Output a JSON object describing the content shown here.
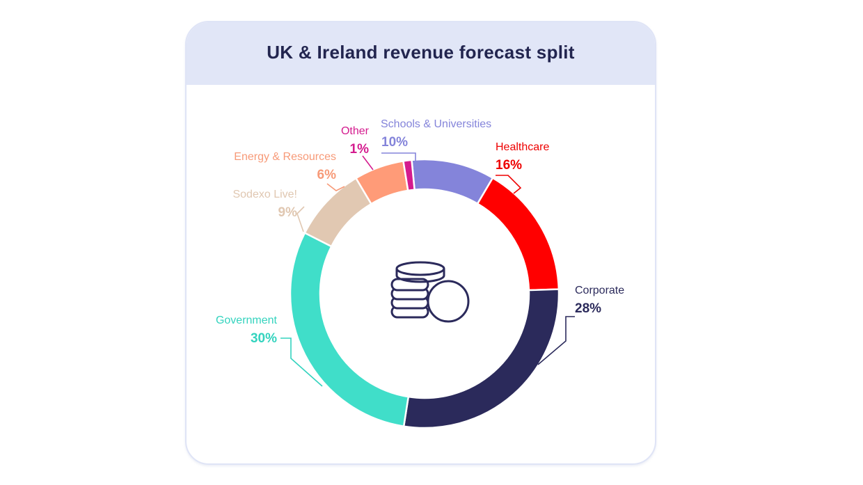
{
  "header": {
    "title": "UK & Ireland revenue forecast split"
  },
  "center_icon": "coins-stack-icon",
  "chart_data": {
    "type": "pie",
    "subtype": "donut",
    "title": "UK & Ireland revenue forecast split",
    "slices": [
      {
        "label": "Schools & Universities",
        "value": 10,
        "value_label": "10%",
        "color": "#8484da"
      },
      {
        "label": "Healthcare",
        "value": 16,
        "value_label": "16%",
        "color": "#ff0000"
      },
      {
        "label": "Corporate",
        "value": 28,
        "value_label": "28%",
        "color": "#2b2a5b"
      },
      {
        "label": "Government",
        "value": 30,
        "value_label": "30%",
        "color": "#40dec9"
      },
      {
        "label": "Sodexo Live!",
        "value": 9,
        "value_label": "9%",
        "color": "#e1c8b2"
      },
      {
        "label": "Energy & Resources",
        "value": 6,
        "value_label": "6%",
        "color": "#ff9b78"
      },
      {
        "label": "Other",
        "value": 1,
        "value_label": "1%",
        "color": "#d41b8e"
      }
    ],
    "label_text_colors": [
      "#8484da",
      "#ee0000",
      "#2b2a5b",
      "#33d3be",
      "#e0c7b1",
      "#f79a78",
      "#d41b8e"
    ]
  }
}
